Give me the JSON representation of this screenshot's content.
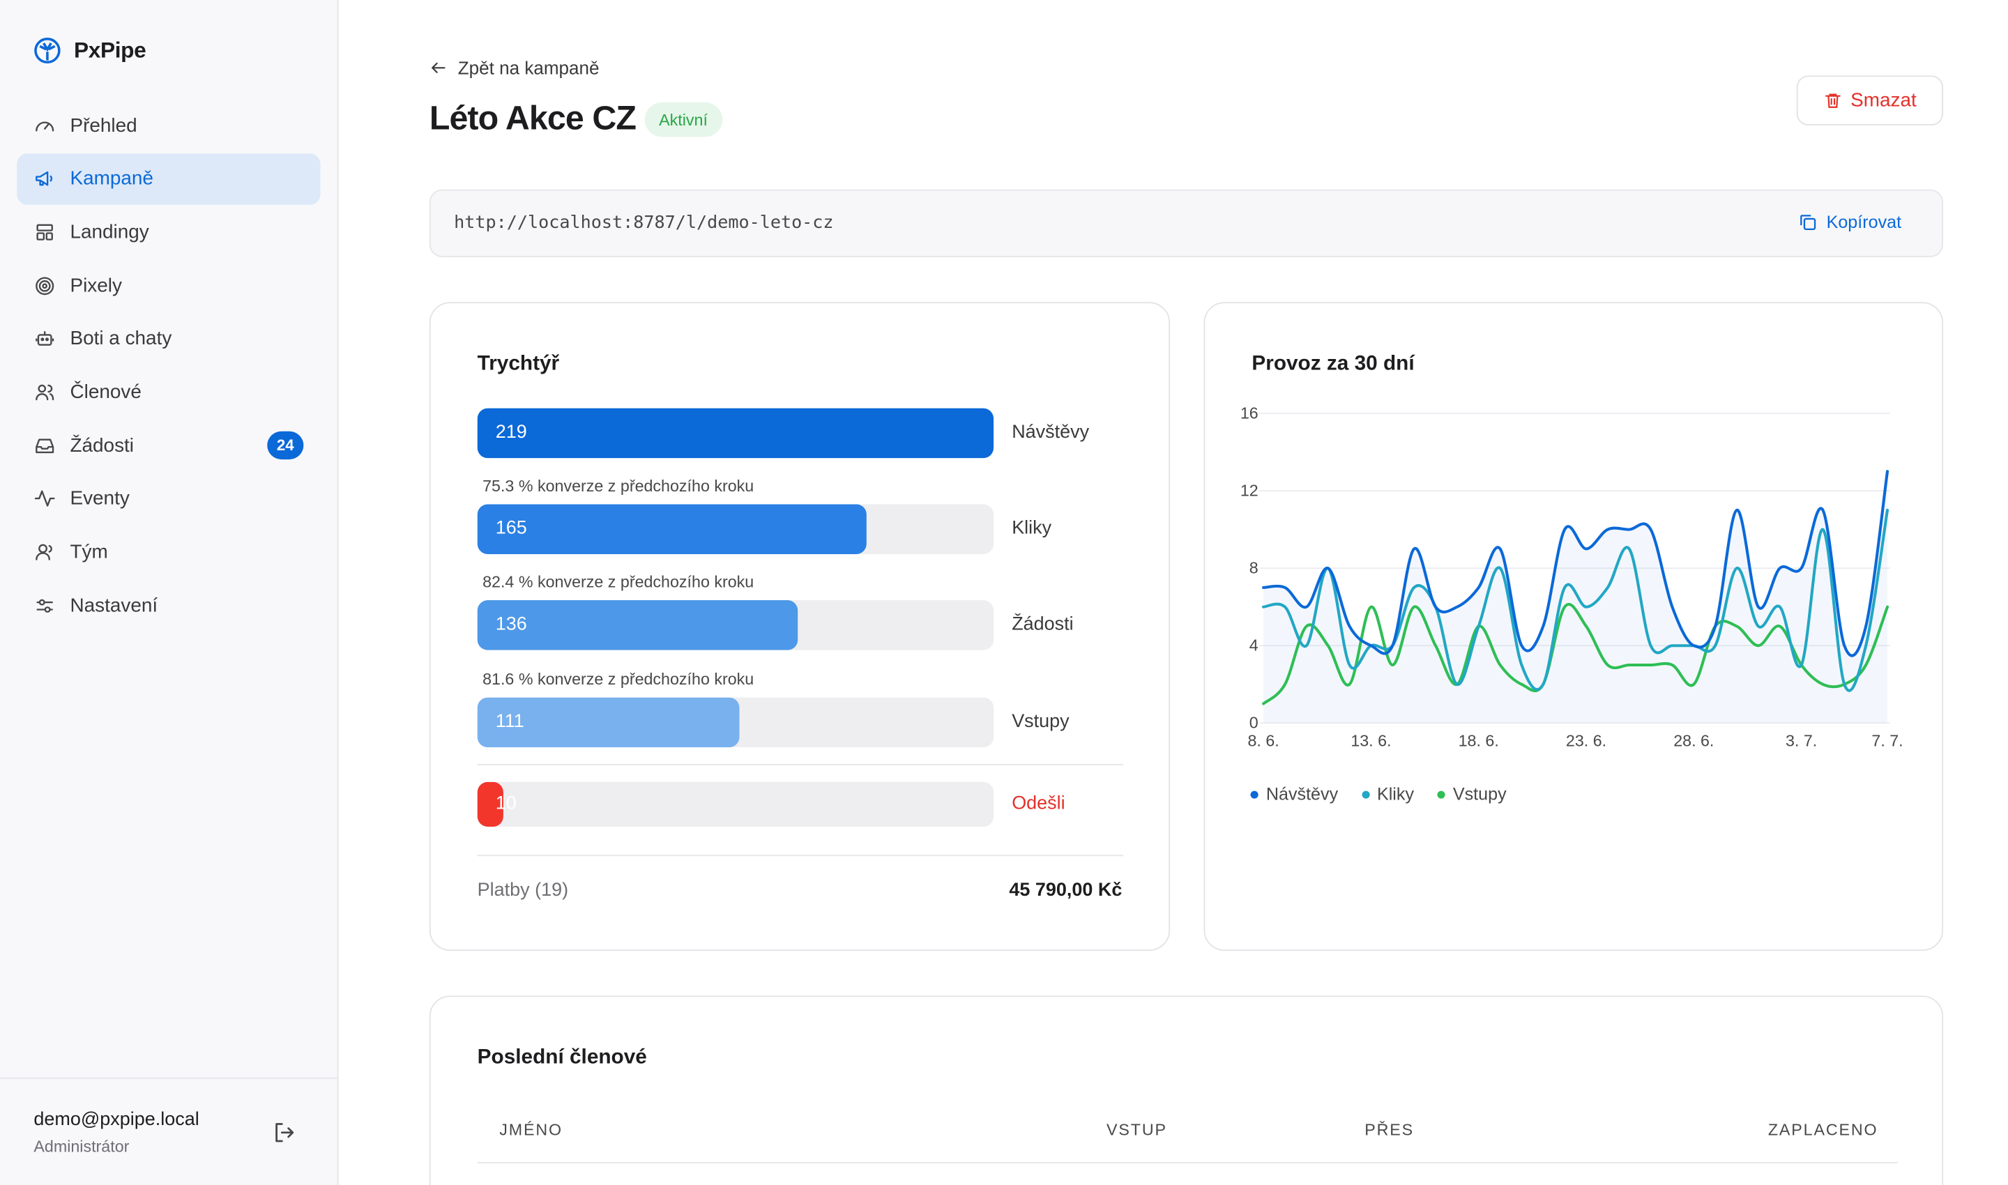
{
  "app": {
    "name": "PxPipe"
  },
  "sidebar": {
    "items": [
      {
        "label": "Přehled",
        "icon": "gauge-icon",
        "active": false
      },
      {
        "label": "Kampaně",
        "icon": "megaphone-icon",
        "active": true
      },
      {
        "label": "Landingy",
        "icon": "layout-icon",
        "active": false
      },
      {
        "label": "Pixely",
        "icon": "target-icon",
        "active": false
      },
      {
        "label": "Boti a chaty",
        "icon": "bot-icon",
        "active": false
      },
      {
        "label": "Členové",
        "icon": "users-icon",
        "active": false
      },
      {
        "label": "Žádosti",
        "icon": "inbox-icon",
        "active": false,
        "badge": "24"
      },
      {
        "label": "Eventy",
        "icon": "activity-icon",
        "active": false
      },
      {
        "label": "Tým",
        "icon": "team-icon",
        "active": false
      },
      {
        "label": "Nastavení",
        "icon": "sliders-icon",
        "active": false
      }
    ],
    "user": {
      "email": "demo@pxpipe.local",
      "role": "Administrátor"
    }
  },
  "header": {
    "back_label": "Zpět na kampaně",
    "title": "Léto Akce CZ",
    "status": "Aktivní",
    "delete_label": "Smazat"
  },
  "link": {
    "url": "http://localhost:8787/l/demo-leto-cz",
    "copy_label": "Kopírovat"
  },
  "funnel": {
    "title": "Trychtýř",
    "steps": [
      {
        "value": "219",
        "label": "Návštěvy",
        "ratio": 1.0,
        "color": "#0b69d8"
      },
      {
        "value": "165",
        "label": "Kliky",
        "ratio": 0.753,
        "color": "#2a80e4",
        "conversion": "75.3 % konverze z předchozího kroku"
      },
      {
        "value": "136",
        "label": "Žádosti",
        "ratio": 0.621,
        "color": "#4d98e8",
        "conversion": "82.4 % konverze z předchozího kroku"
      },
      {
        "value": "111",
        "label": "Vstupy",
        "ratio": 0.507,
        "color": "#78b1ee",
        "conversion": "81.6 % konverze z předchozího kroku"
      }
    ],
    "churn": {
      "value": "10",
      "label": "Odešli",
      "ratio": 0.046,
      "color": "#f2362c"
    },
    "payments": {
      "label": "Platby (19)",
      "value": "45 790,00 Kč"
    }
  },
  "traffic": {
    "title": "Provoz za 30 dní",
    "legend": [
      {
        "name": "Návštěvy",
        "color": "#0b69d8"
      },
      {
        "name": "Kliky",
        "color": "#22a7c4"
      },
      {
        "name": "Vstupy",
        "color": "#2fbe55"
      }
    ]
  },
  "chart_data": {
    "type": "line",
    "title": "Provoz za 30 dní",
    "xlabel": "",
    "ylabel": "",
    "ylim": [
      0,
      16
    ],
    "yticks": [
      "0",
      "4",
      "8",
      "12",
      "16"
    ],
    "x": [
      "8. 6.",
      "9. 6.",
      "10. 6.",
      "11. 6.",
      "12. 6.",
      "13. 6.",
      "14. 6.",
      "15. 6.",
      "16. 6.",
      "17. 6.",
      "18. 6.",
      "19. 6.",
      "20. 6.",
      "21. 6.",
      "22. 6.",
      "23. 6.",
      "24. 6.",
      "25. 6.",
      "26. 6.",
      "27. 6.",
      "28. 6.",
      "29. 6.",
      "30. 6.",
      "1. 7.",
      "2. 7.",
      "3. 7.",
      "4. 7.",
      "5. 7.",
      "6. 7.",
      "7. 7."
    ],
    "xtick_labels": [
      "8. 6.",
      "13. 6.",
      "18. 6.",
      "23. 6.",
      "28. 6.",
      "3. 7.",
      "7. 7."
    ],
    "xtick_indices": [
      0,
      5,
      10,
      15,
      20,
      25,
      29
    ],
    "grid": true,
    "legend_position": "bottom-left",
    "series": [
      {
        "name": "Návštěvy",
        "color": "#0b69d8",
        "values": [
          7,
          7,
          6,
          8,
          5,
          4,
          4,
          9,
          6,
          6,
          7,
          9,
          4,
          5,
          10,
          9,
          10,
          10,
          10,
          6,
          4,
          5,
          11,
          6,
          8,
          8,
          11,
          4,
          5,
          13
        ]
      },
      {
        "name": "Kliky",
        "color": "#22a7c4",
        "values": [
          6,
          6,
          4,
          8,
          3,
          4,
          4,
          7,
          6,
          2,
          5,
          8,
          3,
          2,
          7,
          6,
          7,
          9,
          4,
          4,
          4,
          4,
          8,
          5,
          6,
          3,
          10,
          2,
          4,
          11
        ]
      },
      {
        "name": "Vstupy",
        "color": "#2fbe55",
        "values": [
          1,
          2,
          5,
          4,
          2,
          6,
          3,
          6,
          4,
          2,
          5,
          3,
          2,
          2,
          6,
          5,
          3,
          3,
          3,
          3,
          2,
          5,
          5,
          4,
          5,
          3,
          2,
          2,
          3,
          6
        ]
      }
    ]
  },
  "members": {
    "title": "Poslední členové",
    "columns": [
      "JMÉNO",
      "VSTUP",
      "PŘES",
      "ZAPLACENO"
    ]
  }
}
